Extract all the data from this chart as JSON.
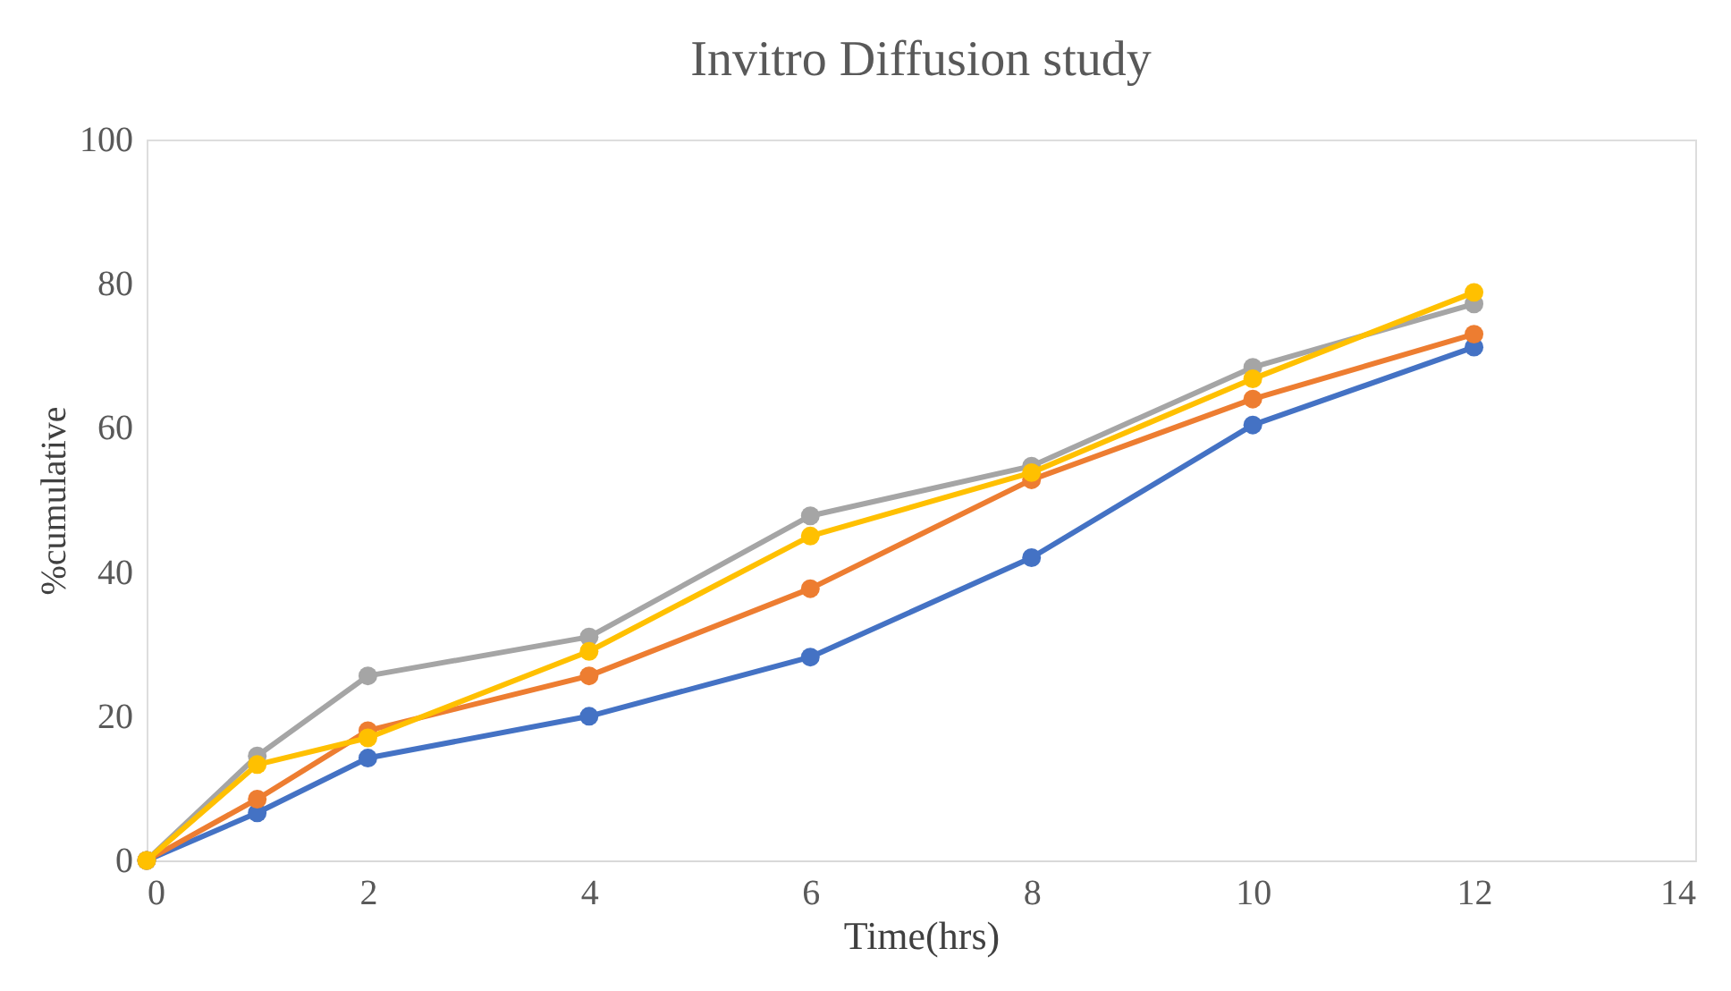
{
  "chart_data": {
    "type": "line",
    "title": "Invitro  Diffusion study",
    "xlabel": "Time(hrs)",
    "ylabel": "%cumulative",
    "x": [
      0,
      1,
      2,
      4,
      6,
      8,
      10,
      12
    ],
    "series": [
      {
        "color": "#4472c4",
        "values": [
          0,
          6.6,
          14.2,
          20,
          28.2,
          42,
          60.4,
          71.2
        ]
      },
      {
        "color": "#ed7d31",
        "values": [
          0,
          8.5,
          18,
          25.6,
          37.7,
          52.8,
          64,
          73
        ]
      },
      {
        "color": "#a5a5a5",
        "values": [
          0,
          14.5,
          25.6,
          31,
          47.8,
          54.7,
          68.4,
          77.2
        ]
      },
      {
        "color": "#ffc000",
        "values": [
          0,
          13.3,
          17,
          29,
          45,
          53.8,
          66.8,
          78.8
        ]
      }
    ],
    "xlim": [
      0,
      14
    ],
    "xticks": [
      0,
      2,
      4,
      6,
      8,
      10,
      12,
      14
    ],
    "ylim": [
      0,
      100
    ],
    "yticks": [
      0,
      20,
      40,
      60,
      80,
      100
    ],
    "grid": false,
    "marker": "circle",
    "line_style": "solid"
  }
}
